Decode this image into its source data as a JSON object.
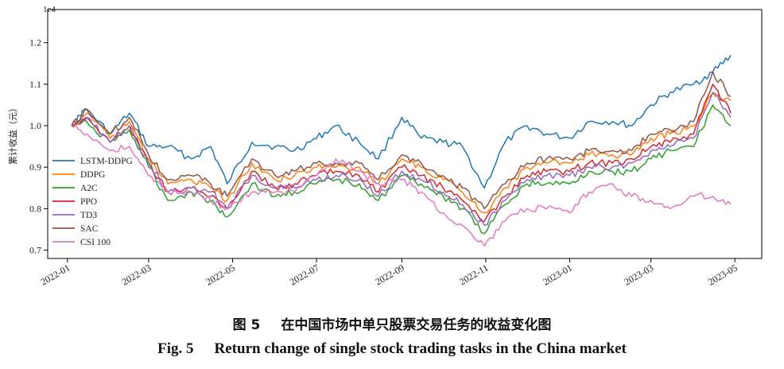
{
  "caption": {
    "cn_label": "图 5",
    "cn_text": "在中国市场中单只股票交易任务的收益变化图",
    "en_label": "Fig. 5",
    "en_text": "Return change of single stock trading tasks in the China market"
  },
  "chart_data": {
    "type": "line",
    "title": "",
    "xlabel": "",
    "ylabel": "累计收益（元）",
    "y_offset_text": "1e4",
    "ylim": [
      0.68,
      1.28
    ],
    "y_ticks": [
      0.7,
      0.8,
      0.9,
      1.0,
      1.1,
      1.2
    ],
    "x_ticks": [
      "2022-01",
      "2022-03",
      "2022-05",
      "2022-07",
      "2022-09",
      "2022-11",
      "2023-01",
      "2023-03",
      "2023-05"
    ],
    "grid": false,
    "legend_position": "center-left",
    "x": [
      "2022-01-04",
      "2022-01-15",
      "2022-02-01",
      "2022-02-15",
      "2022-03-01",
      "2022-03-15",
      "2022-04-01",
      "2022-04-15",
      "2022-04-27",
      "2022-05-15",
      "2022-06-01",
      "2022-06-15",
      "2022-07-01",
      "2022-07-15",
      "2022-08-01",
      "2022-08-15",
      "2022-09-01",
      "2022-09-15",
      "2022-10-01",
      "2022-10-15",
      "2022-10-31",
      "2022-11-15",
      "2022-12-01",
      "2022-12-15",
      "2023-01-01",
      "2023-01-15",
      "2023-02-01",
      "2023-02-15",
      "2023-03-01",
      "2023-03-15",
      "2023-04-01",
      "2023-04-15",
      "2023-04-28"
    ],
    "series": [
      {
        "name": "LSTM-DDPG",
        "color": "#1f77b4",
        "values": [
          1.0,
          1.04,
          0.98,
          1.03,
          0.95,
          0.95,
          0.92,
          0.95,
          0.86,
          0.96,
          0.95,
          0.94,
          0.97,
          1.0,
          0.96,
          0.92,
          1.02,
          0.97,
          0.96,
          0.95,
          0.85,
          0.96,
          1.0,
          0.98,
          0.97,
          1.01,
          1.01,
          1.0,
          1.05,
          1.08,
          1.1,
          1.13,
          1.17
        ]
      },
      {
        "name": "DDPG",
        "color": "#ff7f0e",
        "values": [
          1.0,
          1.03,
          0.97,
          1.01,
          0.92,
          0.86,
          0.87,
          0.85,
          0.82,
          0.91,
          0.87,
          0.88,
          0.9,
          0.9,
          0.9,
          0.86,
          0.92,
          0.9,
          0.87,
          0.84,
          0.79,
          0.85,
          0.9,
          0.91,
          0.91,
          0.93,
          0.93,
          0.93,
          0.97,
          0.98,
          1.0,
          1.08,
          1.06
        ]
      },
      {
        "name": "A2C",
        "color": "#2ca02c",
        "values": [
          1.0,
          1.01,
          0.96,
          0.99,
          0.9,
          0.82,
          0.84,
          0.82,
          0.78,
          0.86,
          0.83,
          0.84,
          0.86,
          0.87,
          0.86,
          0.82,
          0.88,
          0.86,
          0.83,
          0.8,
          0.74,
          0.81,
          0.86,
          0.86,
          0.86,
          0.89,
          0.89,
          0.89,
          0.92,
          0.94,
          0.95,
          1.05,
          1.0
        ]
      },
      {
        "name": "PPO",
        "color": "#d62728",
        "values": [
          1.0,
          1.02,
          0.96,
          1.0,
          0.91,
          0.84,
          0.85,
          0.83,
          0.8,
          0.89,
          0.85,
          0.86,
          0.88,
          0.89,
          0.88,
          0.84,
          0.9,
          0.88,
          0.85,
          0.82,
          0.77,
          0.83,
          0.88,
          0.89,
          0.89,
          0.91,
          0.91,
          0.92,
          0.95,
          0.96,
          0.98,
          1.1,
          1.03
        ]
      },
      {
        "name": "TD3",
        "color": "#9467bd",
        "values": [
          1.0,
          1.02,
          0.96,
          1.0,
          0.91,
          0.84,
          0.85,
          0.84,
          0.8,
          0.88,
          0.85,
          0.85,
          0.87,
          0.88,
          0.87,
          0.83,
          0.89,
          0.87,
          0.84,
          0.81,
          0.76,
          0.82,
          0.87,
          0.88,
          0.88,
          0.9,
          0.9,
          0.91,
          0.94,
          0.95,
          0.97,
          1.08,
          1.02
        ]
      },
      {
        "name": "SAC",
        "color": "#8c564b",
        "values": [
          1.0,
          1.04,
          0.98,
          1.02,
          0.93,
          0.87,
          0.88,
          0.86,
          0.83,
          0.92,
          0.88,
          0.89,
          0.91,
          0.91,
          0.91,
          0.87,
          0.93,
          0.91,
          0.88,
          0.85,
          0.8,
          0.86,
          0.91,
          0.92,
          0.92,
          0.94,
          0.94,
          0.94,
          0.98,
          0.99,
          1.01,
          1.13,
          1.07
        ]
      },
      {
        "name": "CSI 100",
        "color": "#e377c2",
        "values": [
          1.0,
          0.98,
          0.94,
          0.95,
          0.88,
          0.84,
          0.84,
          0.82,
          0.8,
          0.84,
          0.84,
          0.84,
          0.88,
          0.92,
          0.89,
          0.86,
          0.87,
          0.84,
          0.79,
          0.76,
          0.71,
          0.77,
          0.8,
          0.8,
          0.79,
          0.84,
          0.86,
          0.83,
          0.82,
          0.8,
          0.83,
          0.83,
          0.81
        ]
      }
    ]
  }
}
